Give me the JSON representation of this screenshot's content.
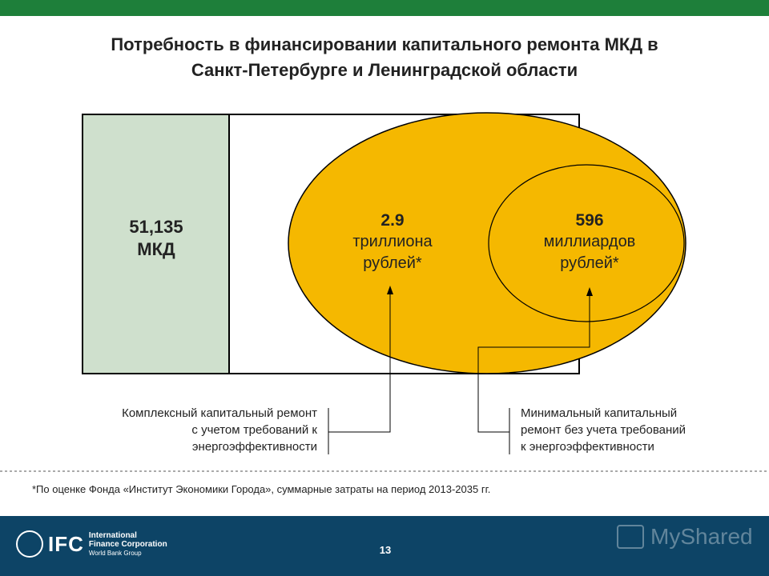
{
  "title": {
    "line1": "Потребность в финансировании капитального  ремонта МКД в",
    "line2": "Санкт-Петербурге и Ленинградской области"
  },
  "box": {
    "value": "51,135",
    "unit": "МКД"
  },
  "outer_ellipse": {
    "value": "2.9",
    "line2": "триллиона",
    "line3": "рублей*"
  },
  "inner_ellipse": {
    "value": "596",
    "line2": "миллиардов",
    "line3": "рублей*"
  },
  "notes": {
    "left": [
      "Комплексный капитальный ремонт",
      "с учетом требований к",
      "энергоэффективности"
    ],
    "right": [
      "Минимальный капитальный",
      "ремонт без учета требований",
      "к энергоэффективности"
    ]
  },
  "footnote": "*По оценке Фонда «Институт Экономики Города», суммарные затраты на период 2013-2035 гг.",
  "page_number": "13",
  "footer": {
    "logo_text": "IFC",
    "logo_line1": "International",
    "logo_line2": "Finance Corporation",
    "logo_line3": "World Bank Group",
    "watermark": "MyShared"
  },
  "colors": {
    "topbar": "#1e7f3a",
    "box_fill": "#cfe0cd",
    "ellipse_fill": "#f5b800",
    "footer": "#0d4466"
  }
}
